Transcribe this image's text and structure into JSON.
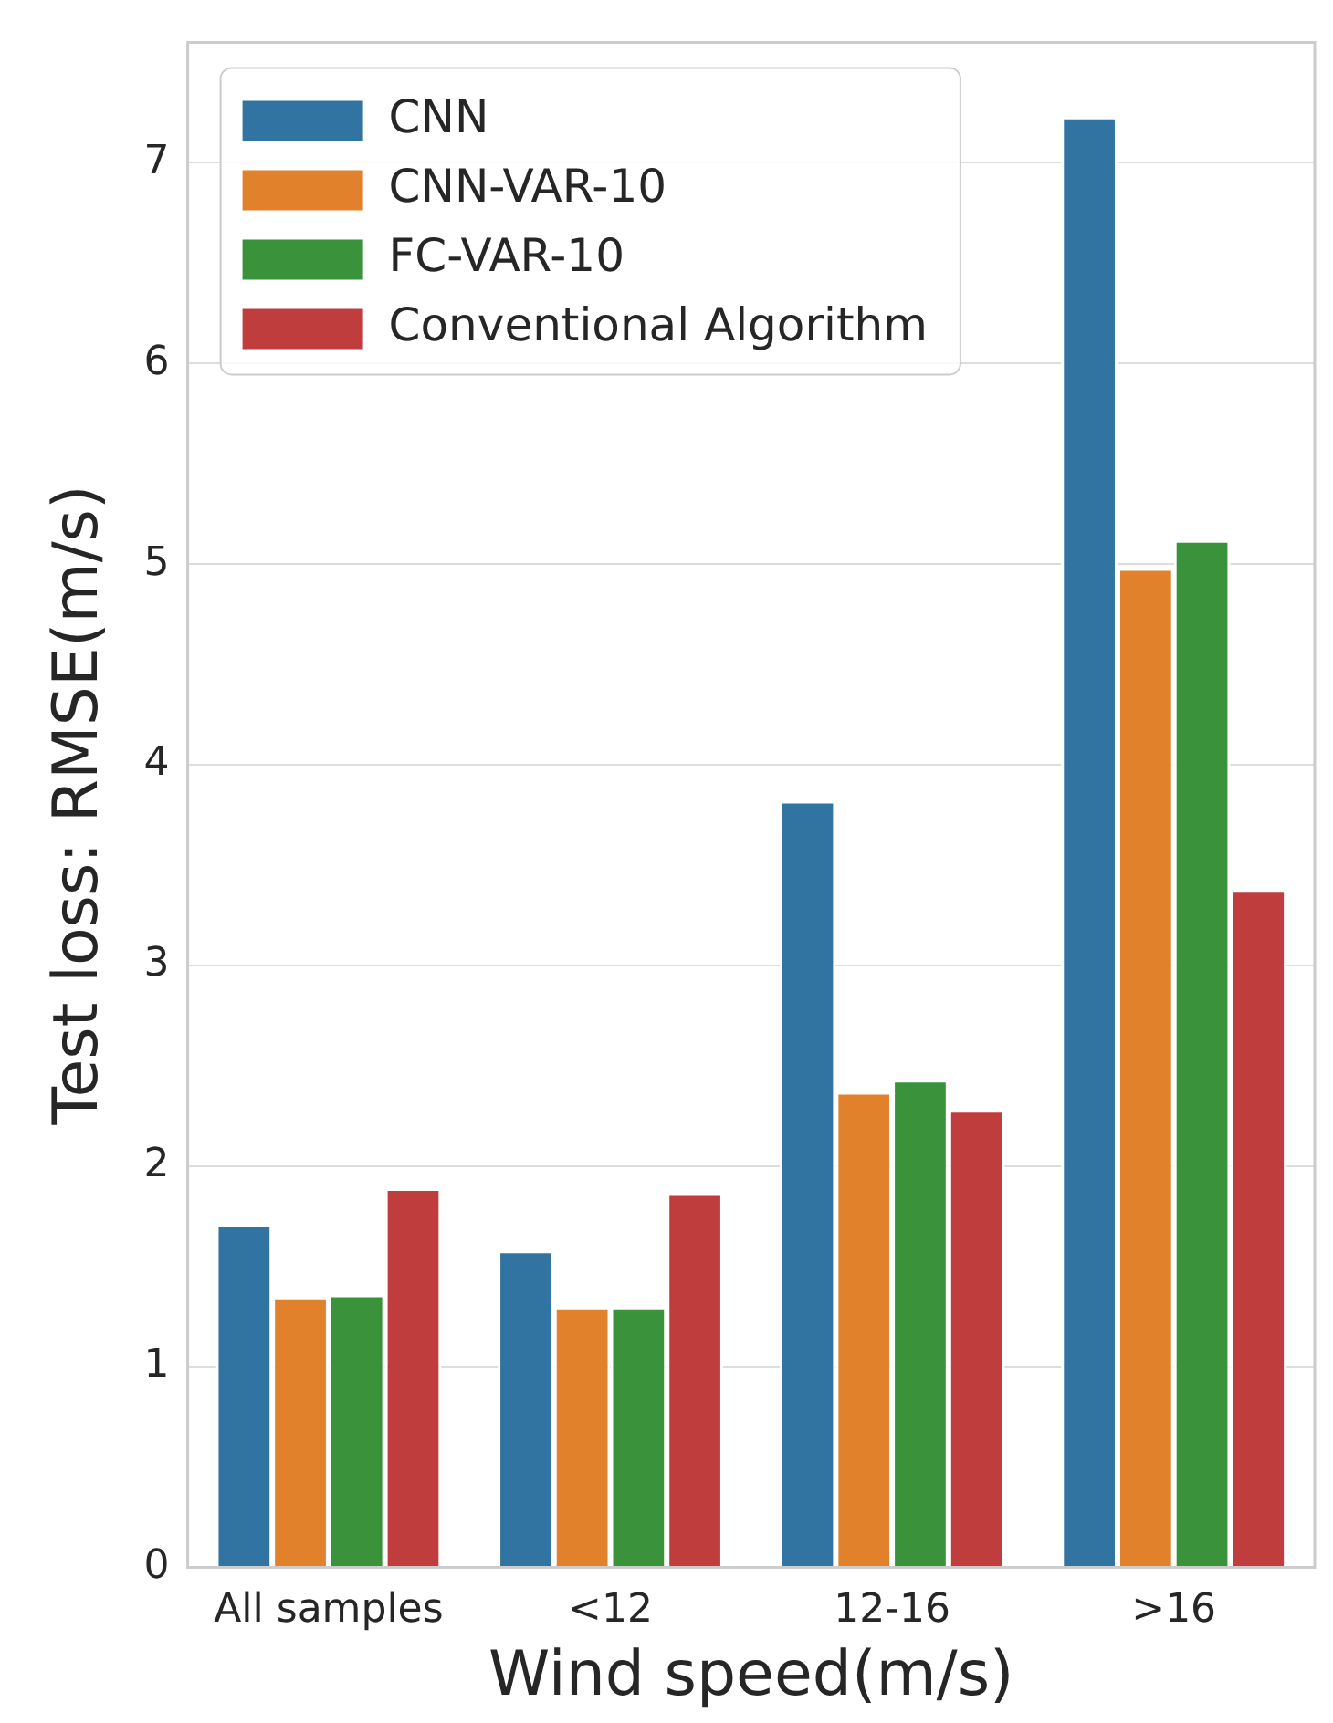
{
  "chart_data": {
    "type": "bar",
    "xlabel": "Wind speed(m/s)",
    "ylabel": "Test loss: RMSE(m/s)",
    "categories": [
      "All samples",
      "<12",
      "12-16",
      ">16"
    ],
    "series": [
      {
        "name": "CNN",
        "color": "#3274a1",
        "values": [
          1.71,
          1.58,
          3.82,
          7.23
        ]
      },
      {
        "name": "CNN-VAR-10",
        "color": "#e1812c",
        "values": [
          1.35,
          1.3,
          2.37,
          4.98
        ]
      },
      {
        "name": "FC-VAR-10",
        "color": "#3a923a",
        "values": [
          1.36,
          1.3,
          2.43,
          5.12
        ]
      },
      {
        "name": "Conventional Algorithm",
        "color": "#c03d3e",
        "values": [
          1.89,
          1.87,
          2.28,
          3.38
        ]
      }
    ],
    "ylim": [
      0,
      7.6
    ],
    "yticks": [
      0,
      1,
      2,
      3,
      4,
      5,
      6,
      7
    ],
    "grid": "y",
    "legend": "top left"
  }
}
